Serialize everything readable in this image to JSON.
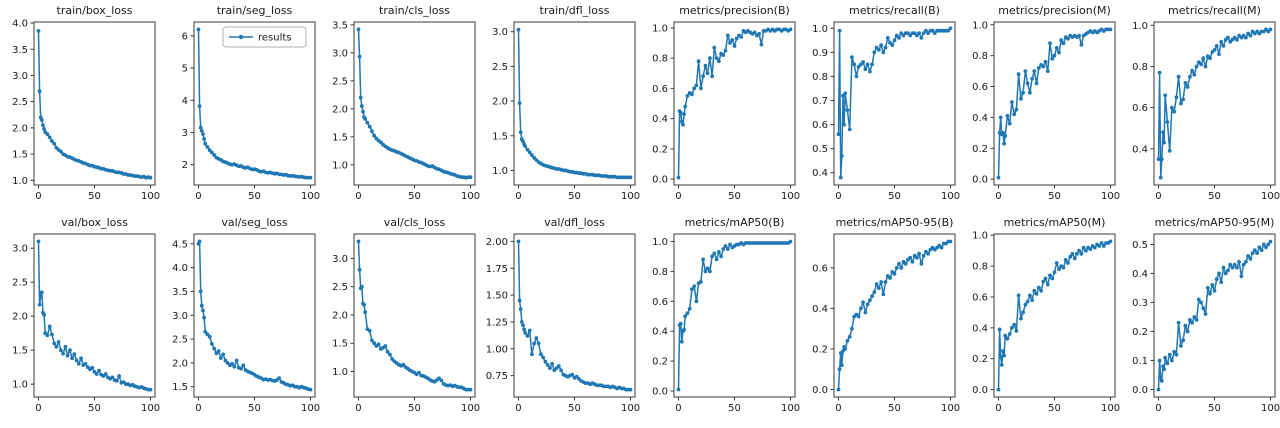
{
  "figure": {
    "background": "#ffffff",
    "line_color": "#1f77b4",
    "marker_color": "#1f77b4",
    "spine_color": "#3a3a3a",
    "text_color": "#1a1a1a",
    "legend": {
      "label": "results",
      "chart_index": 1,
      "border_color": "#b0b0b0"
    }
  },
  "chart_data": {
    "type": "line",
    "series_name": "results",
    "xlabel": "",
    "ylabel": "",
    "grid": false,
    "xlim": [
      -4,
      104
    ],
    "xticks": [
      0,
      50,
      100
    ],
    "x": [
      0,
      1,
      2,
      3,
      4,
      5,
      6,
      8,
      10,
      12,
      14,
      16,
      18,
      20,
      22,
      24,
      26,
      28,
      30,
      32,
      34,
      36,
      38,
      40,
      42,
      44,
      46,
      48,
      50,
      52,
      54,
      56,
      58,
      60,
      62,
      64,
      66,
      68,
      70,
      72,
      74,
      76,
      78,
      80,
      82,
      84,
      86,
      88,
      90,
      92,
      94,
      96,
      98,
      100
    ],
    "charts": [
      {
        "title": "train/box_loss",
        "ylim": [
          0.91,
          4.02
        ],
        "yticks": [
          1.0,
          1.5,
          2.0,
          2.5,
          3.0,
          3.5,
          4.0
        ],
        "ydecimals": 1,
        "values": [
          3.85,
          2.7,
          2.2,
          2.15,
          2.05,
          1.98,
          1.92,
          1.88,
          1.82,
          1.75,
          1.7,
          1.62,
          1.58,
          1.55,
          1.5,
          1.48,
          1.45,
          1.44,
          1.42,
          1.4,
          1.38,
          1.37,
          1.35,
          1.33,
          1.32,
          1.3,
          1.28,
          1.28,
          1.26,
          1.25,
          1.24,
          1.22,
          1.22,
          1.2,
          1.19,
          1.18,
          1.18,
          1.16,
          1.15,
          1.15,
          1.14,
          1.12,
          1.12,
          1.1,
          1.1,
          1.09,
          1.08,
          1.08,
          1.07,
          1.06,
          1.07,
          1.05,
          1.06,
          1.05
        ]
      },
      {
        "title": "train/seg_loss",
        "legend": "results",
        "ylim": [
          1.37,
          6.43
        ],
        "yticks": [
          2,
          3,
          4,
          5,
          6
        ],
        "ydecimals": 0,
        "values": [
          6.2,
          3.82,
          3.15,
          3.05,
          2.95,
          2.8,
          2.65,
          2.55,
          2.45,
          2.38,
          2.3,
          2.22,
          2.18,
          2.15,
          2.1,
          2.08,
          2.05,
          2.02,
          2.0,
          2.02,
          1.98,
          1.95,
          1.96,
          1.92,
          1.9,
          1.92,
          1.88,
          1.85,
          1.86,
          1.84,
          1.8,
          1.78,
          1.8,
          1.76,
          1.75,
          1.76,
          1.74,
          1.72,
          1.73,
          1.7,
          1.7,
          1.68,
          1.69,
          1.66,
          1.65,
          1.66,
          1.64,
          1.63,
          1.62,
          1.63,
          1.61,
          1.6,
          1.6,
          1.6
        ]
      },
      {
        "title": "train/cls_loss",
        "ylim": [
          0.64,
          3.55
        ],
        "yticks": [
          1.0,
          1.5,
          2.0,
          2.5,
          3.0,
          3.5
        ],
        "ydecimals": 1,
        "values": [
          3.42,
          2.93,
          2.2,
          2.05,
          1.95,
          1.85,
          1.82,
          1.75,
          1.68,
          1.6,
          1.52,
          1.47,
          1.43,
          1.4,
          1.36,
          1.33,
          1.3,
          1.28,
          1.26,
          1.25,
          1.23,
          1.22,
          1.2,
          1.18,
          1.16,
          1.14,
          1.12,
          1.1,
          1.08,
          1.07,
          1.05,
          1.04,
          1.02,
          1.0,
          0.98,
          0.97,
          0.98,
          0.95,
          0.93,
          0.92,
          0.9,
          0.88,
          0.87,
          0.86,
          0.84,
          0.83,
          0.82,
          0.8,
          0.79,
          0.78,
          0.78,
          0.77,
          0.78,
          0.78
        ]
      },
      {
        "title": "train/dfl_loss",
        "ylim": [
          0.79,
          3.14
        ],
        "yticks": [
          1.0,
          1.5,
          2.0,
          2.5,
          3.0
        ],
        "ydecimals": 1,
        "values": [
          3.03,
          1.97,
          1.55,
          1.45,
          1.42,
          1.38,
          1.35,
          1.3,
          1.26,
          1.22,
          1.18,
          1.15,
          1.12,
          1.1,
          1.08,
          1.07,
          1.06,
          1.05,
          1.04,
          1.03,
          1.02,
          1.02,
          1.01,
          1.0,
          1.0,
          0.99,
          0.98,
          0.98,
          0.97,
          0.97,
          0.96,
          0.96,
          0.95,
          0.95,
          0.94,
          0.94,
          0.94,
          0.93,
          0.93,
          0.93,
          0.92,
          0.92,
          0.92,
          0.91,
          0.91,
          0.91,
          0.91,
          0.9,
          0.9,
          0.9,
          0.9,
          0.9,
          0.9,
          0.9
        ]
      },
      {
        "title": "metrics/precision(B)",
        "ylim": [
          -0.039,
          1.039
        ],
        "yticks": [
          0.0,
          0.2,
          0.4,
          0.6,
          0.8,
          1.0
        ],
        "ydecimals": 1,
        "values": [
          0.01,
          0.45,
          0.44,
          0.38,
          0.36,
          0.43,
          0.48,
          0.55,
          0.57,
          0.56,
          0.6,
          0.62,
          0.78,
          0.6,
          0.68,
          0.75,
          0.7,
          0.8,
          0.68,
          0.87,
          0.8,
          0.78,
          0.83,
          0.82,
          0.85,
          0.95,
          0.9,
          0.92,
          0.88,
          0.93,
          0.95,
          0.94,
          0.98,
          0.97,
          0.98,
          0.97,
          0.96,
          0.97,
          0.95,
          0.96,
          0.89,
          0.98,
          0.98,
          0.99,
          0.98,
          0.99,
          0.98,
          0.99,
          0.99,
          0.98,
          0.99,
          0.99,
          0.98,
          0.99
        ]
      },
      {
        "title": "metrics/recall(B)",
        "ylim": [
          0.349,
          1.026
        ],
        "yticks": [
          0.4,
          0.5,
          0.6,
          0.7,
          0.8,
          0.9,
          1.0
        ],
        "ydecimals": 1,
        "values": [
          0.56,
          0.99,
          0.38,
          0.47,
          0.72,
          0.6,
          0.73,
          0.66,
          0.58,
          0.88,
          0.85,
          0.8,
          0.84,
          0.85,
          0.86,
          0.83,
          0.85,
          0.82,
          0.85,
          0.9,
          0.92,
          0.91,
          0.93,
          0.9,
          0.92,
          0.96,
          0.94,
          0.93,
          0.95,
          0.97,
          0.96,
          0.98,
          0.97,
          0.98,
          0.98,
          0.97,
          0.98,
          0.98,
          0.97,
          0.98,
          0.96,
          0.98,
          0.99,
          0.98,
          0.99,
          0.99,
          0.98,
          0.99,
          0.99,
          0.99,
          0.99,
          0.99,
          0.99,
          1.0
        ]
      },
      {
        "title": "metrics/precision(M)",
        "ylim": [
          -0.038,
          1.018
        ],
        "yticks": [
          0.0,
          0.2,
          0.4,
          0.6,
          0.8,
          1.0
        ],
        "ydecimals": 1,
        "values": [
          0.01,
          0.3,
          0.4,
          0.29,
          0.3,
          0.23,
          0.28,
          0.41,
          0.36,
          0.5,
          0.42,
          0.45,
          0.68,
          0.52,
          0.56,
          0.7,
          0.62,
          0.56,
          0.65,
          0.7,
          0.62,
          0.72,
          0.74,
          0.73,
          0.76,
          0.7,
          0.88,
          0.78,
          0.8,
          0.85,
          0.82,
          0.9,
          0.88,
          0.92,
          0.91,
          0.93,
          0.92,
          0.93,
          0.92,
          0.93,
          0.87,
          0.93,
          0.94,
          0.95,
          0.96,
          0.95,
          0.96,
          0.95,
          0.96,
          0.97,
          0.96,
          0.97,
          0.97,
          0.97
        ]
      },
      {
        "title": "metrics/recall(M)",
        "ylim": [
          0.224,
          1.016
        ],
        "yticks": [
          0.4,
          0.6,
          0.8,
          1.0
        ],
        "ydecimals": 1,
        "values": [
          0.35,
          0.77,
          0.26,
          0.35,
          0.48,
          0.43,
          0.66,
          0.53,
          0.39,
          0.6,
          0.58,
          0.65,
          0.75,
          0.62,
          0.64,
          0.72,
          0.7,
          0.75,
          0.78,
          0.76,
          0.8,
          0.82,
          0.81,
          0.84,
          0.8,
          0.85,
          0.84,
          0.87,
          0.88,
          0.9,
          0.86,
          0.92,
          0.9,
          0.93,
          0.94,
          0.92,
          0.93,
          0.94,
          0.93,
          0.95,
          0.94,
          0.95,
          0.94,
          0.96,
          0.95,
          0.97,
          0.96,
          0.97,
          0.96,
          0.97,
          0.97,
          0.98,
          0.97,
          0.98
        ]
      },
      {
        "title": "val/box_loss",
        "ylim": [
          0.811,
          3.209
        ],
        "yticks": [
          1.0,
          1.5,
          2.0,
          2.5,
          3.0
        ],
        "ydecimals": 1,
        "values": [
          3.1,
          2.17,
          2.3,
          2.35,
          2.05,
          2.02,
          1.75,
          1.72,
          1.85,
          1.73,
          1.6,
          1.55,
          1.62,
          1.5,
          1.45,
          1.55,
          1.42,
          1.5,
          1.38,
          1.44,
          1.35,
          1.3,
          1.38,
          1.28,
          1.3,
          1.25,
          1.22,
          1.24,
          1.18,
          1.15,
          1.2,
          1.14,
          1.12,
          1.15,
          1.1,
          1.08,
          1.1,
          1.06,
          1.05,
          1.12,
          1.02,
          1.03,
          1.0,
          1.0,
          0.98,
          0.99,
          0.97,
          0.96,
          0.95,
          0.96,
          0.94,
          0.93,
          0.92,
          0.92
        ]
      },
      {
        "title": "val/seg_loss",
        "ylim": [
          1.284,
          4.706
        ],
        "yticks": [
          1.5,
          2.0,
          2.5,
          3.0,
          3.5,
          4.0,
          4.5
        ],
        "ydecimals": 1,
        "values": [
          4.5,
          4.55,
          3.5,
          3.2,
          3.1,
          2.95,
          2.65,
          2.6,
          2.55,
          2.4,
          2.3,
          2.2,
          2.25,
          2.1,
          2.18,
          2.05,
          2.0,
          1.95,
          1.98,
          1.92,
          2.05,
          1.9,
          1.88,
          1.95,
          1.85,
          1.82,
          1.8,
          1.78,
          1.75,
          1.72,
          1.7,
          1.68,
          1.65,
          1.66,
          1.64,
          1.65,
          1.63,
          1.62,
          1.64,
          1.68,
          1.6,
          1.58,
          1.55,
          1.54,
          1.52,
          1.53,
          1.5,
          1.5,
          1.48,
          1.5,
          1.48,
          1.47,
          1.45,
          1.44
        ]
      },
      {
        "title": "val/cls_loss",
        "ylim": [
          0.549,
          3.431
        ],
        "yticks": [
          1.0,
          1.5,
          2.0,
          2.5,
          3.0
        ],
        "ydecimals": 1,
        "values": [
          3.3,
          2.8,
          2.47,
          2.5,
          2.2,
          2.18,
          2.05,
          1.75,
          1.72,
          1.55,
          1.5,
          1.45,
          1.48,
          1.4,
          1.42,
          1.45,
          1.35,
          1.3,
          1.22,
          1.18,
          1.15,
          1.12,
          1.1,
          1.12,
          1.08,
          1.05,
          1.02,
          1.0,
          0.98,
          0.95,
          0.98,
          0.93,
          0.92,
          0.9,
          0.88,
          0.85,
          0.83,
          0.82,
          0.85,
          0.88,
          0.84,
          0.78,
          0.76,
          0.75,
          0.76,
          0.74,
          0.75,
          0.73,
          0.72,
          0.72,
          0.7,
          0.68,
          0.68,
          0.68
        ]
      },
      {
        "title": "val/dfl_loss",
        "ylim": [
          0.551,
          2.069
        ],
        "yticks": [
          0.75,
          1.0,
          1.25,
          1.5,
          1.75,
          2.0
        ],
        "ydecimals": 2,
        "values": [
          2.0,
          1.45,
          1.37,
          1.25,
          1.22,
          1.18,
          1.15,
          1.12,
          1.17,
          0.95,
          1.05,
          1.1,
          1.05,
          0.95,
          0.92,
          0.88,
          0.85,
          0.82,
          0.86,
          0.8,
          0.82,
          0.84,
          0.8,
          0.76,
          0.75,
          0.74,
          0.75,
          0.76,
          0.73,
          0.74,
          0.72,
          0.7,
          0.69,
          0.68,
          0.68,
          0.67,
          0.68,
          0.67,
          0.66,
          0.66,
          0.66,
          0.65,
          0.65,
          0.65,
          0.64,
          0.65,
          0.64,
          0.63,
          0.64,
          0.63,
          0.63,
          0.62,
          0.62,
          0.62
        ]
      },
      {
        "title": "metrics/mAP50(B)",
        "ylim": [
          -0.04,
          1.05
        ],
        "yticks": [
          0.0,
          0.2,
          0.4,
          0.6,
          0.8,
          1.0
        ],
        "ydecimals": 1,
        "values": [
          0.01,
          0.44,
          0.45,
          0.33,
          0.4,
          0.41,
          0.5,
          0.52,
          0.55,
          0.68,
          0.7,
          0.6,
          0.72,
          0.73,
          0.88,
          0.8,
          0.82,
          0.8,
          0.9,
          0.92,
          0.88,
          0.93,
          0.9,
          0.95,
          0.97,
          0.95,
          0.98,
          0.96,
          0.97,
          0.98,
          0.98,
          0.99,
          0.98,
          0.99,
          0.99,
          0.99,
          0.99,
          0.99,
          0.99,
          0.99,
          0.99,
          0.99,
          0.99,
          0.99,
          0.99,
          0.99,
          0.99,
          0.99,
          0.99,
          0.99,
          0.99,
          0.99,
          0.99,
          1.0
        ]
      },
      {
        "title": "metrics/mAP50-95(B)",
        "ylim": [
          -0.037,
          0.767
        ],
        "yticks": [
          0.0,
          0.2,
          0.4,
          0.6
        ],
        "ydecimals": 1,
        "values": [
          0.0,
          0.1,
          0.18,
          0.12,
          0.19,
          0.21,
          0.2,
          0.24,
          0.26,
          0.3,
          0.36,
          0.37,
          0.36,
          0.4,
          0.43,
          0.38,
          0.42,
          0.44,
          0.46,
          0.48,
          0.52,
          0.5,
          0.53,
          0.47,
          0.53,
          0.56,
          0.55,
          0.58,
          0.57,
          0.6,
          0.62,
          0.6,
          0.63,
          0.62,
          0.64,
          0.65,
          0.63,
          0.66,
          0.65,
          0.67,
          0.62,
          0.66,
          0.68,
          0.67,
          0.69,
          0.7,
          0.69,
          0.7,
          0.71,
          0.7,
          0.72,
          0.72,
          0.73,
          0.73
        ]
      },
      {
        "title": "metrics/mAP50(M)",
        "ylim": [
          -0.048,
          1.008
        ],
        "yticks": [
          0.0,
          0.2,
          0.4,
          0.6,
          0.8,
          1.0
        ],
        "ydecimals": 1,
        "values": [
          0.0,
          0.39,
          0.21,
          0.16,
          0.25,
          0.22,
          0.35,
          0.33,
          0.36,
          0.4,
          0.42,
          0.38,
          0.61,
          0.46,
          0.5,
          0.55,
          0.57,
          0.61,
          0.58,
          0.64,
          0.62,
          0.66,
          0.64,
          0.7,
          0.72,
          0.68,
          0.74,
          0.72,
          0.76,
          0.82,
          0.78,
          0.8,
          0.79,
          0.84,
          0.82,
          0.86,
          0.88,
          0.85,
          0.88,
          0.9,
          0.88,
          0.92,
          0.9,
          0.92,
          0.91,
          0.93,
          0.92,
          0.94,
          0.93,
          0.95,
          0.93,
          0.95,
          0.95,
          0.96
        ]
      },
      {
        "title": "metrics/mAP50-95(M)",
        "ylim": [
          -0.026,
          0.536
        ],
        "yticks": [
          0.0,
          0.1,
          0.2,
          0.3,
          0.4,
          0.5
        ],
        "ydecimals": 1,
        "values": [
          0.0,
          0.1,
          0.04,
          0.03,
          0.08,
          0.07,
          0.11,
          0.09,
          0.12,
          0.1,
          0.13,
          0.12,
          0.23,
          0.15,
          0.17,
          0.22,
          0.2,
          0.24,
          0.23,
          0.25,
          0.24,
          0.31,
          0.3,
          0.28,
          0.26,
          0.35,
          0.33,
          0.36,
          0.34,
          0.38,
          0.4,
          0.37,
          0.42,
          0.4,
          0.41,
          0.43,
          0.42,
          0.43,
          0.42,
          0.44,
          0.39,
          0.43,
          0.44,
          0.46,
          0.45,
          0.47,
          0.48,
          0.47,
          0.49,
          0.48,
          0.5,
          0.49,
          0.5,
          0.51
        ]
      }
    ]
  }
}
